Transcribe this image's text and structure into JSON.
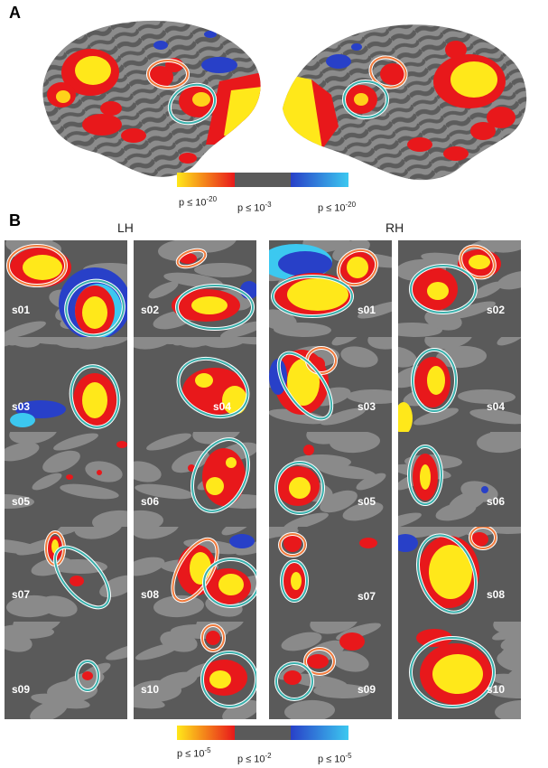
{
  "panel_a": {
    "letter": "A",
    "scale": {
      "left_prefix": "p ≤ 10",
      "left_exp": "-20",
      "mid_prefix": "p ≤ 10",
      "mid_exp": "-3",
      "right_prefix": "p ≤ 10",
      "right_exp": "-20"
    }
  },
  "panel_b": {
    "letter": "B",
    "lh_label": "LH",
    "rh_label": "RH",
    "scale": {
      "left_prefix": "p ≤ 10",
      "left_exp": "-5",
      "mid_prefix": "p ≤ 10",
      "mid_exp": "-2",
      "right_prefix": "p ≤ 10",
      "right_exp": "-5"
    },
    "subjects": [
      "s01",
      "s02",
      "s03",
      "s04",
      "s05",
      "s06",
      "s07",
      "s08",
      "s09",
      "s10"
    ]
  },
  "colors": {
    "cortex_dark": "#5a5a5a",
    "cortex_light": "#8a8a8a",
    "activation_hot": "#e8181b",
    "activation_peak": "#ffe81a",
    "deactivation": "#2840c8",
    "deactivation_peak": "#3cc8f0",
    "roi_orange": "#f07a3c",
    "roi_teal": "#3ab0ac"
  }
}
